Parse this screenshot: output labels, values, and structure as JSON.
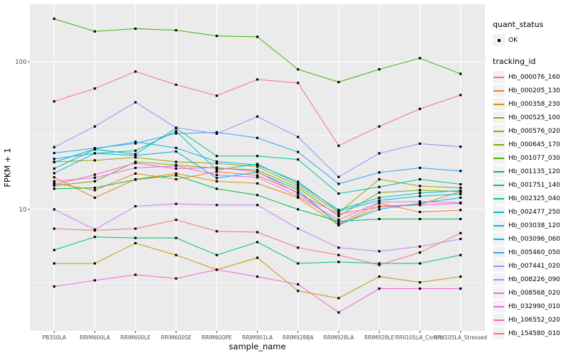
{
  "chart_data": {
    "type": "line",
    "title": "",
    "xlabel": "sample_name",
    "ylabel": "FPKM + 1",
    "y_scale": "log10",
    "ylim": [
      1.5,
      246
    ],
    "y_ticks": [
      {
        "label": "100",
        "value": 100
      },
      {
        "label": "10",
        "value": 10
      }
    ],
    "y_minor": [
      31.623,
      3.162
    ],
    "grid": "on",
    "categories": [
      "PB350LA",
      "RRIM600LA",
      "RRIM600LE",
      "RRIM600SE",
      "RRIM600PE",
      "RRIM901LA",
      "RRIM928BA",
      "RRIM928LA",
      "RRIM928LE",
      "RRII105LA_Control",
      "RRII105LA_Stressed"
    ],
    "series": [
      {
        "id": "Hb_000076_160",
        "color": "#F8766D",
        "values": [
          7.4,
          7.2,
          7.4,
          8.5,
          7.1,
          7.0,
          5.5,
          4.9,
          4.2,
          5.1,
          6.9
        ]
      },
      {
        "id": "Hb_000205_130",
        "color": "#EA8331",
        "values": [
          15.0,
          13.5,
          17.5,
          16.0,
          18.0,
          17.0,
          13.0,
          8.0,
          11.0,
          9.6,
          9.9
        ]
      },
      {
        "id": "Hb_000358_230",
        "color": "#D89000",
        "values": [
          16.5,
          12.0,
          16.0,
          17.5,
          15.5,
          15.0,
          12.0,
          7.8,
          10.5,
          10.8,
          13.2
        ]
      },
      {
        "id": "Hb_000525_100",
        "color": "#C09B00",
        "values": [
          4.3,
          4.3,
          5.9,
          4.9,
          3.9,
          4.7,
          2.8,
          2.5,
          3.5,
          3.2,
          3.5
        ]
      },
      {
        "id": "Hb_000576_020",
        "color": "#A3A500",
        "values": [
          21.0,
          21.5,
          22.5,
          21.0,
          20.5,
          19.5,
          14.5,
          9.5,
          16.0,
          14.4,
          14.0
        ]
      },
      {
        "id": "Hb_000645_170",
        "color": "#7CAE00",
        "values": [
          14.5,
          15.5,
          21.0,
          20.0,
          19.0,
          18.5,
          14.0,
          9.0,
          13.0,
          13.5,
          13.2
        ]
      },
      {
        "id": "Hb_001077_030",
        "color": "#39B600",
        "values": [
          196,
          161,
          168,
          164,
          150,
          148,
          89,
          73,
          89,
          106,
          83
        ]
      },
      {
        "id": "Hb_001135_120",
        "color": "#00BB4E",
        "values": [
          13.8,
          14.0,
          15.9,
          17.0,
          13.8,
          12.5,
          10.0,
          8.3,
          8.6,
          8.6,
          8.6
        ]
      },
      {
        "id": "Hb_001751_140",
        "color": "#00BF7D",
        "values": [
          5.3,
          6.5,
          6.4,
          6.4,
          4.9,
          6.0,
          4.3,
          4.4,
          4.3,
          4.3,
          4.9
        ]
      },
      {
        "id": "Hb_002325_040",
        "color": "#00C1A3",
        "values": [
          18.9,
          25.5,
          23.7,
          35.5,
          23.0,
          23.0,
          21.8,
          12.8,
          14.2,
          16.0,
          14.8
        ]
      },
      {
        "id": "Hb_002477_250",
        "color": "#00BFC4",
        "values": [
          17.6,
          24.0,
          25.0,
          33.9,
          18.5,
          20.3,
          15.0,
          9.9,
          12.0,
          12.9,
          13.4
        ]
      },
      {
        "id": "Hb_003038_120",
        "color": "#00BAE0",
        "values": [
          20.9,
          25.7,
          28.7,
          26.1,
          21.1,
          20.0,
          15.4,
          9.7,
          11.5,
          12.3,
          12.7
        ]
      },
      {
        "id": "Hb_003096_060",
        "color": "#00B0F6",
        "values": [
          22.0,
          24.0,
          23.2,
          24.7,
          16.3,
          17.9,
          13.5,
          7.9,
          10.0,
          11.0,
          12.0
        ]
      },
      {
        "id": "Hb_005460_050",
        "color": "#35A2FF",
        "values": [
          24.1,
          26.0,
          28.0,
          32.7,
          33.3,
          30.5,
          24.5,
          14.9,
          17.8,
          19.1,
          18.2
        ]
      },
      {
        "id": "Hb_007441_020",
        "color": "#9590FF",
        "values": [
          26.4,
          36.5,
          53.2,
          35.8,
          32.6,
          42.6,
          31.0,
          16.6,
          24.0,
          27.9,
          26.6
        ]
      },
      {
        "id": "Hb_008226_090",
        "color": "#C77CFF",
        "values": [
          10.0,
          7.3,
          10.5,
          10.9,
          10.7,
          10.7,
          7.4,
          5.5,
          5.2,
          5.6,
          6.3
        ]
      },
      {
        "id": "Hb_008568_020",
        "color": "#E76BF3",
        "values": [
          15.5,
          16.4,
          19.1,
          19.7,
          17.1,
          16.5,
          12.3,
          8.5,
          11.2,
          11.3,
          11.1
        ]
      },
      {
        "id": "Hb_032990_010",
        "color": "#FA62DB",
        "values": [
          3.0,
          3.3,
          3.6,
          3.4,
          3.9,
          3.5,
          3.1,
          2.0,
          2.9,
          2.9,
          2.9
        ]
      },
      {
        "id": "Hb_106552_020",
        "color": "#FF62BC",
        "values": [
          14.7,
          17.2,
          20.6,
          18.9,
          19.2,
          18.0,
          12.8,
          9.3,
          10.4,
          10.7,
          11.0
        ]
      },
      {
        "id": "Hb_154580_010",
        "color": "#FF6A98",
        "values": [
          54,
          66,
          86,
          70,
          59,
          76,
          72,
          27,
          36.5,
          48,
          59.6
        ]
      }
    ],
    "legend": {
      "position": "right",
      "quant_title": "quant_status",
      "quant_item": "OK",
      "marker": {
        "shape": "square",
        "color": "#000000"
      },
      "series_title": "tracking_id"
    },
    "style": {
      "panel_bg": "#EBEBEB",
      "grid_color": "#FFFFFF",
      "point_color": "#000000",
      "axis_text": "#4D4D4D",
      "axis_title": "#000000",
      "tick_mark": "#333333",
      "key_bg": "#F2F2F2"
    }
  }
}
